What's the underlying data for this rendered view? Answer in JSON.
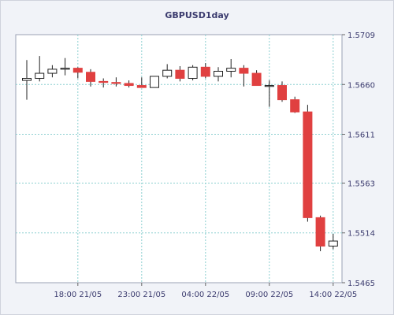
{
  "chart_data": {
    "type": "candlestick",
    "title": "GBPUSD1day",
    "xlabel": "",
    "ylabel": "",
    "ylim": [
      1.5465,
      1.5709
    ],
    "y_ticks": [
      "1.5709",
      "1.5660",
      "1.5611",
      "1.5563",
      "1.5514",
      "1.5465"
    ],
    "x_ticks": [
      {
        "label": "18:00 21/05",
        "index": 4
      },
      {
        "label": "23:00 21/05",
        "index": 9
      },
      {
        "label": "04:00 22/05",
        "index": 14
      },
      {
        "label": "09:00 22/05",
        "index": 19
      },
      {
        "label": "14:00 22/05",
        "index": 24
      }
    ],
    "grid": true,
    "colors": {
      "bull": "#ffffff",
      "bear": "#e04040",
      "grid": "#8ccfd0",
      "axis": "#3b3b6e"
    },
    "candles": [
      {
        "o": 1.5664,
        "h": 1.5684,
        "l": 1.5645,
        "c": 1.5666
      },
      {
        "o": 1.5666,
        "h": 1.5688,
        "l": 1.5663,
        "c": 1.5671
      },
      {
        "o": 1.5671,
        "h": 1.5679,
        "l": 1.5667,
        "c": 1.5675
      },
      {
        "o": 1.5675,
        "h": 1.5686,
        "l": 1.5669,
        "c": 1.5676
      },
      {
        "o": 1.5676,
        "h": 1.5677,
        "l": 1.5666,
        "c": 1.5672
      },
      {
        "o": 1.5672,
        "h": 1.5675,
        "l": 1.5658,
        "c": 1.5663
      },
      {
        "o": 1.5663,
        "h": 1.5666,
        "l": 1.5657,
        "c": 1.5662
      },
      {
        "o": 1.5662,
        "h": 1.5667,
        "l": 1.5658,
        "c": 1.5661
      },
      {
        "o": 1.5661,
        "h": 1.5664,
        "l": 1.5657,
        "c": 1.5659
      },
      {
        "o": 1.5659,
        "h": 1.5667,
        "l": 1.5657,
        "c": 1.5657
      },
      {
        "o": 1.5657,
        "h": 1.5667,
        "l": 1.5657,
        "c": 1.5668
      },
      {
        "o": 1.5668,
        "h": 1.568,
        "l": 1.5666,
        "c": 1.5674
      },
      {
        "o": 1.5674,
        "h": 1.5678,
        "l": 1.5663,
        "c": 1.5666
      },
      {
        "o": 1.5666,
        "h": 1.5679,
        "l": 1.5664,
        "c": 1.5677
      },
      {
        "o": 1.5677,
        "h": 1.5681,
        "l": 1.5666,
        "c": 1.5668
      },
      {
        "o": 1.5668,
        "h": 1.5677,
        "l": 1.5663,
        "c": 1.5673
      },
      {
        "o": 1.5673,
        "h": 1.5685,
        "l": 1.5667,
        "c": 1.5676
      },
      {
        "o": 1.5676,
        "h": 1.5679,
        "l": 1.5658,
        "c": 1.5671
      },
      {
        "o": 1.5671,
        "h": 1.5674,
        "l": 1.5659,
        "c": 1.5659
      },
      {
        "o": 1.5659,
        "h": 1.5664,
        "l": 1.5638,
        "c": 1.5659
      },
      {
        "o": 1.5659,
        "h": 1.5663,
        "l": 1.5643,
        "c": 1.5645
      },
      {
        "o": 1.5645,
        "h": 1.5648,
        "l": 1.5632,
        "c": 1.5633
      },
      {
        "o": 1.5633,
        "h": 1.564,
        "l": 1.5525,
        "c": 1.5529
      },
      {
        "o": 1.5529,
        "h": 1.5531,
        "l": 1.5496,
        "c": 1.5501
      },
      {
        "o": 1.5501,
        "h": 1.5513,
        "l": 1.5498,
        "c": 1.5506
      }
    ]
  }
}
